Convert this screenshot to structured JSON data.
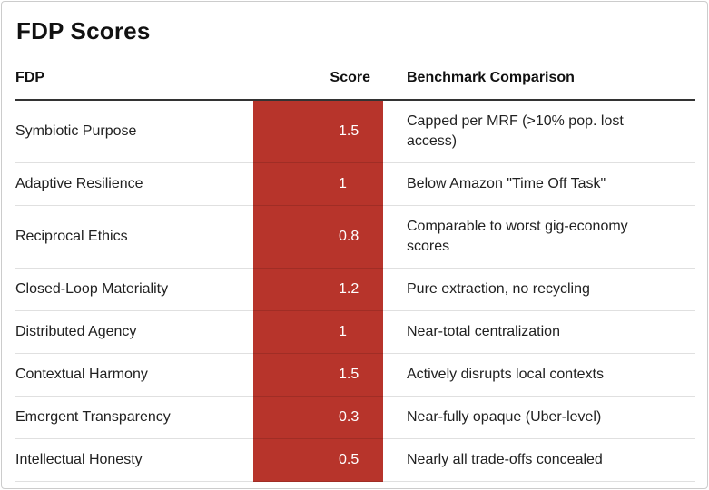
{
  "theme": {
    "score_cell_bg": "#b7342b",
    "score_text_color": "#ffffff",
    "header_rule_color": "#333333",
    "row_divider_color": "rgba(0,0,0,0.12)",
    "card_border_color": "#cccccc",
    "body_text_color": "#212121",
    "heading_text_color": "#111111"
  },
  "card": {
    "title": "FDP Scores"
  },
  "table": {
    "headers": {
      "fdp": "FDP",
      "score": "Score",
      "benchmark": "Benchmark Comparison"
    },
    "rows": [
      {
        "fdp": "Symbiotic Purpose",
        "score": "1.5",
        "benchmark": "Capped per MRF (>10% pop. lost access)"
      },
      {
        "fdp": "Adaptive Resilience",
        "score": "1",
        "benchmark": "Below Amazon \"Time Off Task\""
      },
      {
        "fdp": "Reciprocal Ethics",
        "score": "0.8",
        "benchmark": "Comparable to worst gig-economy scores"
      },
      {
        "fdp": "Closed-Loop Materiality",
        "score": "1.2",
        "benchmark": "Pure extraction, no recycling"
      },
      {
        "fdp": "Distributed Agency",
        "score": "1",
        "benchmark": "Near-total centralization"
      },
      {
        "fdp": "Contextual Harmony",
        "score": "1.5",
        "benchmark": "Actively disrupts local contexts"
      },
      {
        "fdp": "Emergent Transparency",
        "score": "0.3",
        "benchmark": "Near-fully opaque (Uber-level)"
      },
      {
        "fdp": "Intellectual Honesty",
        "score": "0.5",
        "benchmark": "Nearly all trade-offs concealed"
      }
    ]
  },
  "chart_data": {
    "type": "table",
    "title": "FDP Scores",
    "columns": [
      "FDP",
      "Score",
      "Benchmark Comparison"
    ],
    "rows": [
      [
        "Symbiotic Purpose",
        1.5,
        "Capped per MRF (>10% pop. lost access)"
      ],
      [
        "Adaptive Resilience",
        1,
        "Below Amazon \"Time Off Task\""
      ],
      [
        "Reciprocal Ethics",
        0.8,
        "Comparable to worst gig-economy scores"
      ],
      [
        "Closed-Loop Materiality",
        1.2,
        "Pure extraction, no recycling"
      ],
      [
        "Distributed Agency",
        1,
        "Near-total centralization"
      ],
      [
        "Contextual Harmony",
        1.5,
        "Actively disrupts local contexts"
      ],
      [
        "Emergent Transparency",
        0.3,
        "Near-fully opaque (Uber-level)"
      ],
      [
        "Intellectual Honesty",
        0.5,
        "Nearly all trade-offs concealed"
      ]
    ],
    "layout_hints": {
      "score_column_highlight": "#b7342b",
      "score_values_text_color": "#ffffff",
      "grid": "horizontal row dividers",
      "header_rule": "2px dark line under header"
    }
  }
}
